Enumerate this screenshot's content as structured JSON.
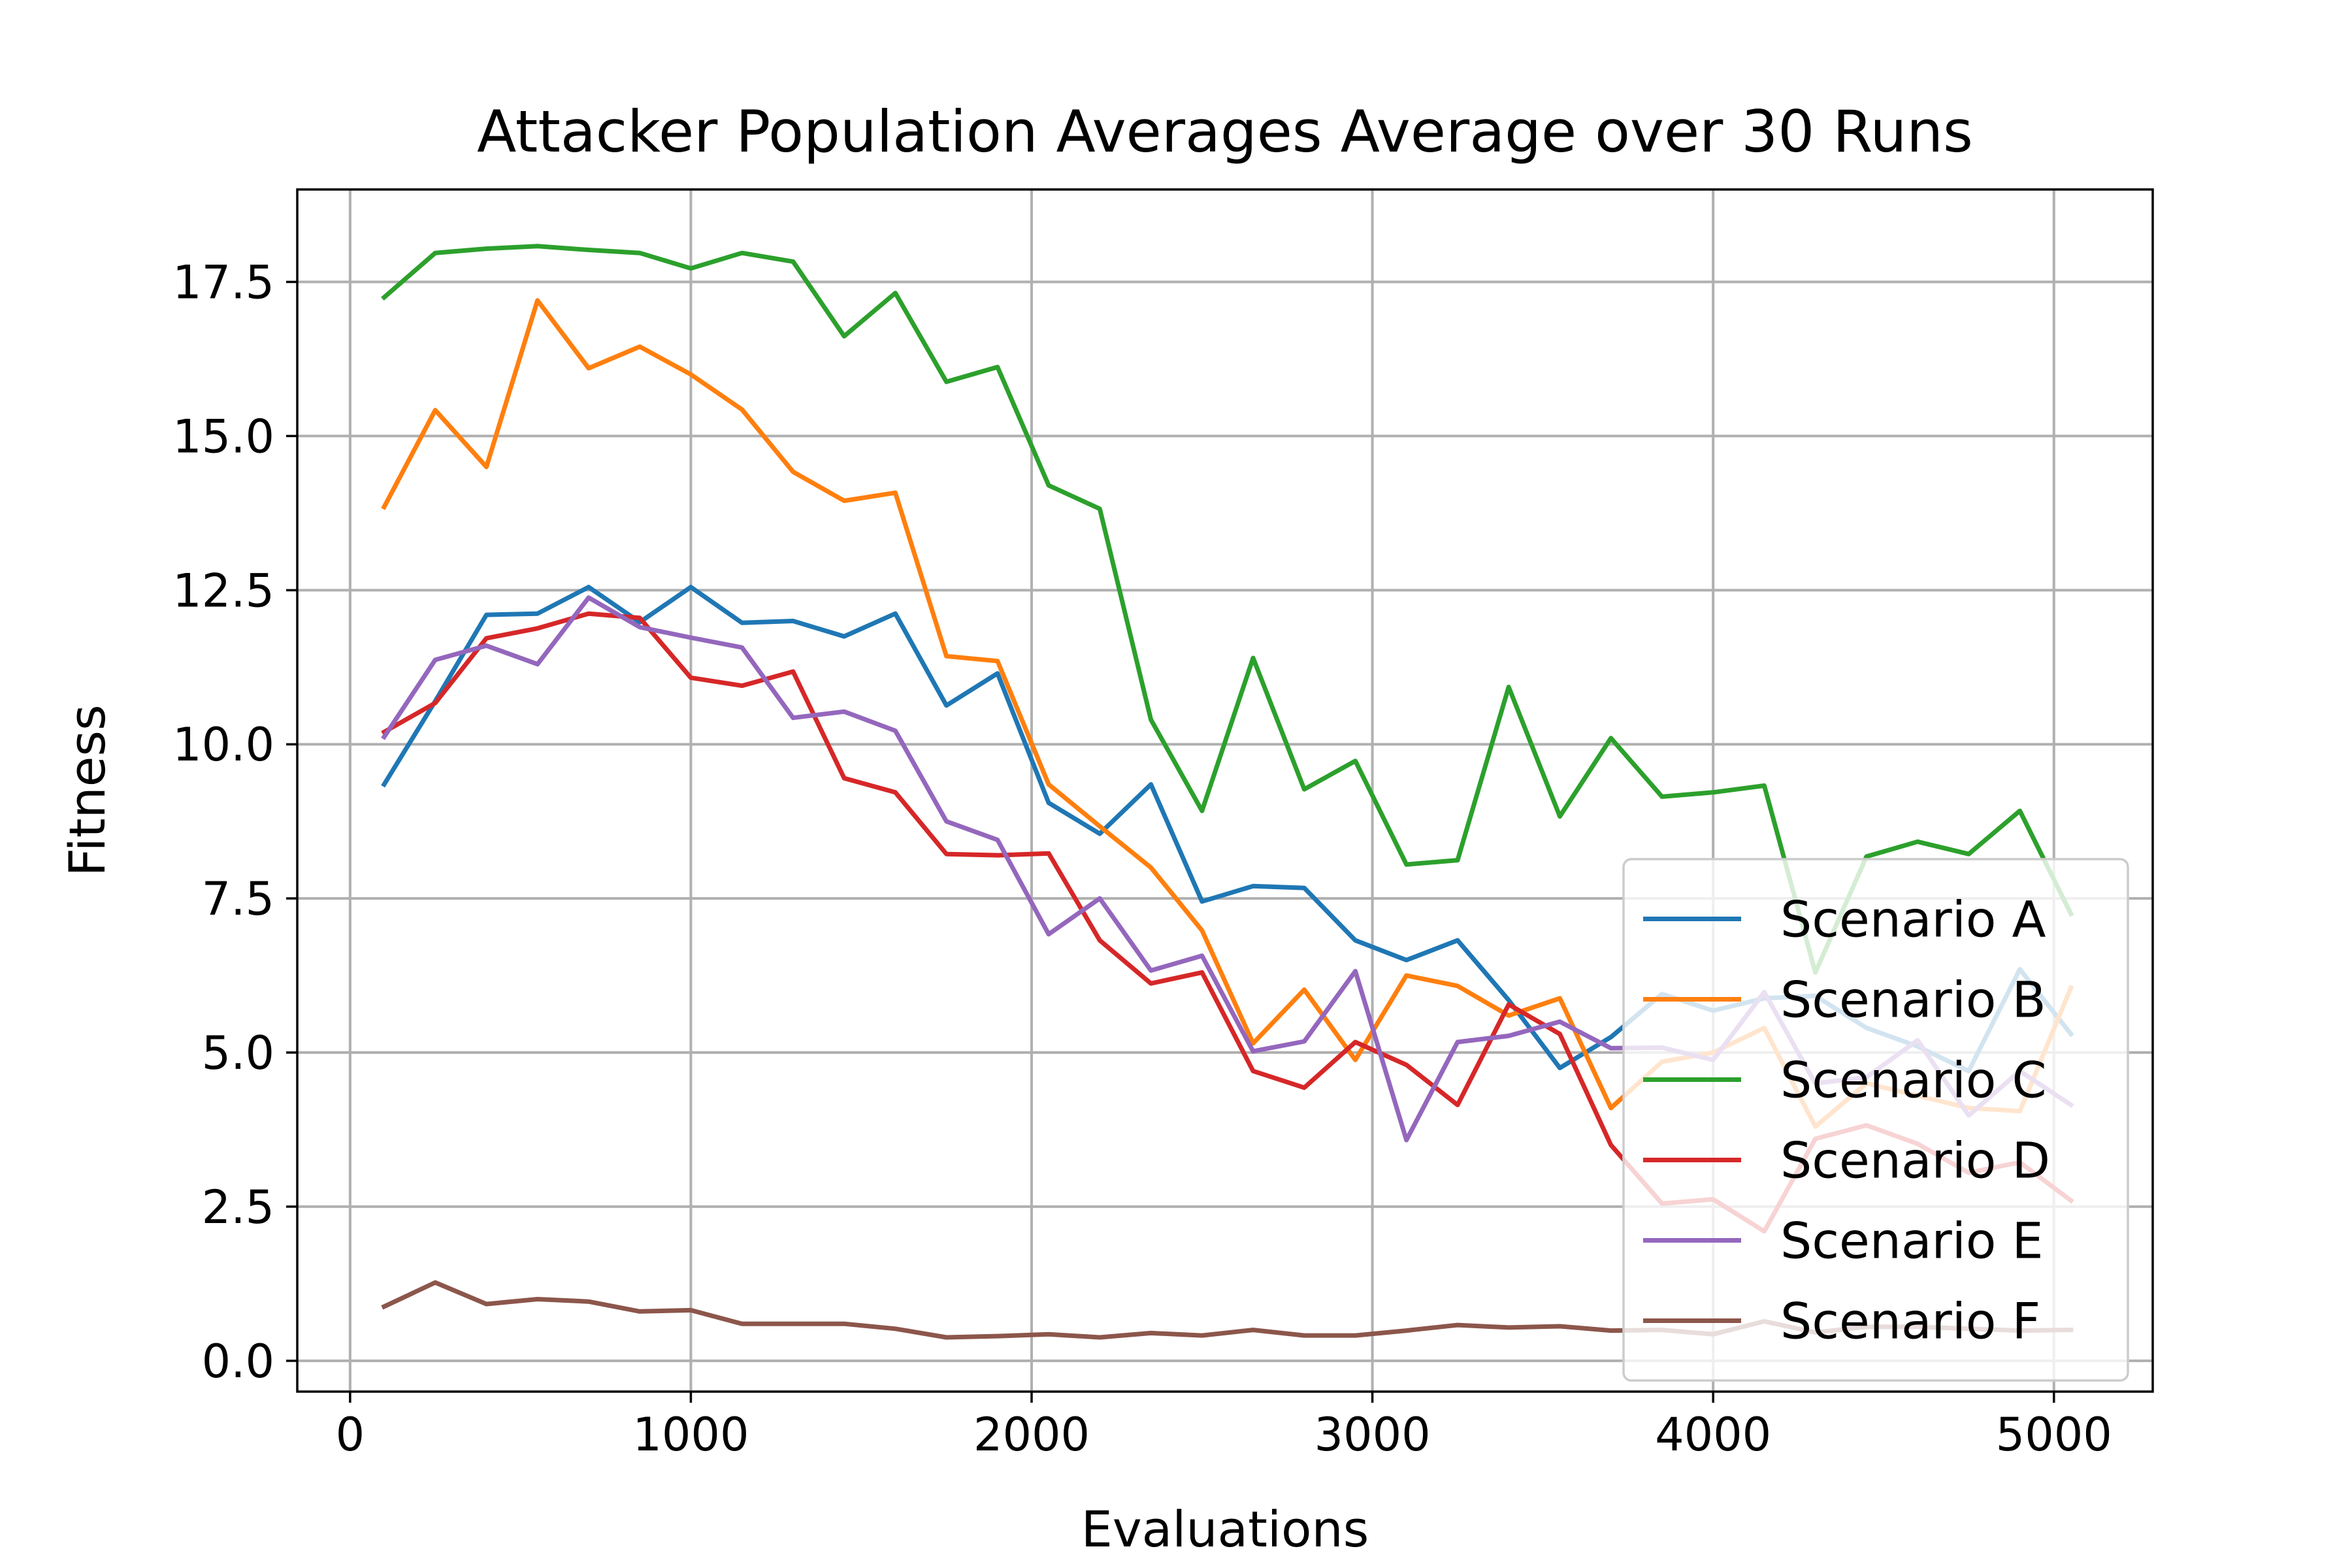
{
  "chart_data": {
    "type": "line",
    "title": "Attacker Population Averages Average over 30 Runs",
    "xlabel": "Evaluations",
    "ylabel": "Fitness",
    "xlim": [
      -155,
      5290
    ],
    "ylim": [
      -0.5,
      19.0
    ],
    "xticks": [
      0,
      1000,
      2000,
      3000,
      4000,
      5000
    ],
    "xtick_labels": [
      "0",
      "1000",
      "2000",
      "3000",
      "4000",
      "5000"
    ],
    "yticks": [
      0.0,
      2.5,
      5.0,
      7.5,
      10.0,
      12.5,
      15.0,
      17.5
    ],
    "ytick_labels": [
      "0.0",
      "2.5",
      "5.0",
      "7.5",
      "10.0",
      "12.5",
      "15.0",
      "17.5"
    ],
    "grid": true,
    "legend_position": "lower-right",
    "x": [
      100,
      250,
      400,
      550,
      700,
      850,
      1000,
      1150,
      1300,
      1450,
      1600,
      1750,
      1900,
      2050,
      2200,
      2350,
      2500,
      2650,
      2800,
      2950,
      3100,
      3250,
      3400,
      3550,
      3700,
      3850,
      4000,
      4150,
      4300,
      4450,
      4600,
      4750,
      4900,
      5050
    ],
    "series": [
      {
        "name": "Scenario A",
        "color": "#1f77b4",
        "values": [
          9.35,
          10.7,
          12.1,
          12.12,
          12.55,
          11.98,
          12.55,
          11.97,
          12.0,
          11.75,
          12.12,
          10.63,
          11.15,
          9.05,
          8.55,
          9.35,
          7.45,
          7.7,
          7.67,
          6.82,
          6.5,
          6.82,
          5.85,
          4.75,
          5.25,
          5.95,
          5.68,
          5.88,
          5.92,
          5.4,
          5.1,
          4.7,
          6.35,
          5.3
        ]
      },
      {
        "name": "Scenario B",
        "color": "#ff7f0e",
        "values": [
          13.85,
          15.42,
          14.5,
          17.2,
          16.1,
          16.45,
          16.0,
          15.43,
          14.42,
          13.95,
          14.08,
          11.43,
          11.35,
          9.35,
          8.67,
          8.0,
          6.98,
          5.15,
          6.02,
          4.88,
          6.25,
          6.08,
          5.6,
          5.88,
          4.1,
          4.85,
          5.0,
          5.4,
          3.8,
          4.5,
          4.3,
          4.1,
          4.05,
          6.05
        ]
      },
      {
        "name": "Scenario C",
        "color": "#2ca02c",
        "values": [
          17.25,
          17.97,
          18.04,
          18.08,
          18.02,
          17.97,
          17.72,
          17.97,
          17.83,
          16.62,
          17.32,
          15.88,
          16.12,
          14.2,
          13.82,
          10.4,
          8.92,
          11.4,
          9.27,
          9.73,
          8.05,
          8.12,
          10.93,
          8.83,
          10.1,
          9.15,
          9.22,
          9.33,
          6.3,
          8.18,
          8.42,
          8.22,
          8.92,
          7.25
        ]
      },
      {
        "name": "Scenario D",
        "color": "#d62728",
        "values": [
          10.2,
          10.67,
          11.72,
          11.88,
          12.12,
          12.05,
          11.08,
          10.95,
          11.18,
          9.45,
          9.22,
          8.22,
          8.2,
          8.23,
          6.82,
          6.12,
          6.3,
          4.7,
          4.43,
          5.17,
          4.8,
          4.15,
          5.78,
          5.3,
          3.5,
          2.55,
          2.62,
          2.1,
          3.6,
          3.82,
          3.52,
          3.05,
          3.22,
          2.6
        ]
      },
      {
        "name": "Scenario E",
        "color": "#9467bd",
        "values": [
          10.12,
          11.37,
          11.6,
          11.3,
          12.38,
          11.9,
          11.73,
          11.57,
          10.43,
          10.53,
          10.22,
          8.75,
          8.45,
          6.92,
          7.5,
          6.33,
          6.57,
          5.02,
          5.18,
          6.32,
          3.58,
          5.17,
          5.27,
          5.5,
          5.07,
          5.08,
          4.88,
          5.98,
          4.5,
          4.6,
          5.2,
          3.98,
          4.7,
          4.15
        ]
      },
      {
        "name": "Scenario F",
        "color": "#8c564b",
        "values": [
          0.88,
          1.27,
          0.92,
          1.0,
          0.96,
          0.8,
          0.82,
          0.6,
          0.6,
          0.6,
          0.52,
          0.38,
          0.4,
          0.43,
          0.38,
          0.45,
          0.41,
          0.5,
          0.41,
          0.41,
          0.49,
          0.58,
          0.54,
          0.56,
          0.49,
          0.5,
          0.43,
          0.64,
          0.46,
          0.55,
          0.55,
          0.52,
          0.49,
          0.5
        ]
      }
    ]
  }
}
